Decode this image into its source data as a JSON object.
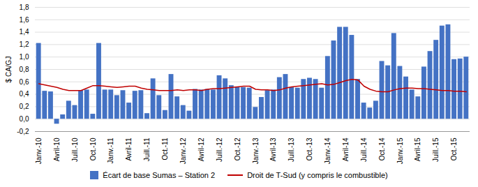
{
  "chart_data": {
    "type": "bar",
    "categories": [
      "Janv.-10",
      null,
      null,
      "Avril-10",
      null,
      null,
      "Juill.-10",
      null,
      null,
      "Oct.-10",
      null,
      null,
      "Janv.-11",
      null,
      null,
      "Avril-11",
      null,
      null,
      "Juill.-11",
      null,
      null,
      "Oct.-11",
      null,
      null,
      "Janv.-12",
      null,
      null,
      "Avril-12",
      null,
      null,
      "Juill.-12",
      null,
      null,
      "Oct.-12",
      null,
      null,
      "Janv.-13",
      null,
      null,
      "Avril-13",
      null,
      null,
      "Juill.-13",
      null,
      null,
      "Oct.-13",
      null,
      null,
      "Janv.-14",
      null,
      null,
      "Avril-14",
      null,
      null,
      "Juill.-14",
      null,
      null,
      "Oct.-14",
      null,
      null,
      "Janv.-15",
      null,
      null,
      "Avril-15",
      null,
      null,
      "Juill.-15",
      null,
      null,
      "Oct.-15",
      null,
      null
    ],
    "series": [
      {
        "name": "Écart de base Sumas – Station 2",
        "type": "bar",
        "color": "#4472C4",
        "values": [
          1.22,
          0.45,
          0.44,
          -0.08,
          0.07,
          0.29,
          0.22,
          0.46,
          0.47,
          0.08,
          1.22,
          0.47,
          0.47,
          0.38,
          0.46,
          0.26,
          0.45,
          0.46,
          0.09,
          0.65,
          0.38,
          0.14,
          0.72,
          0.36,
          0.22,
          0.13,
          0.48,
          0.47,
          0.48,
          0.47,
          0.7,
          0.65,
          0.54,
          0.51,
          0.51,
          0.5,
          0.19,
          0.35,
          0.46,
          0.47,
          0.67,
          0.72,
          0.51,
          0.5,
          0.64,
          0.66,
          0.64,
          0.5,
          1.01,
          1.26,
          1.48,
          1.48,
          1.35,
          0.64,
          0.26,
          0.18,
          0.29,
          0.93,
          0.86,
          1.38,
          0.85,
          0.68,
          0.47,
          0.36,
          0.84,
          1.09,
          1.27,
          1.5,
          1.52,
          0.96,
          0.97,
          1.0
        ]
      },
      {
        "name": "Droit de T-Sud (y compris le combustible)",
        "type": "line",
        "color": "#C00000",
        "values": [
          0.57,
          0.55,
          0.53,
          0.51,
          0.48,
          0.46,
          0.46,
          0.46,
          0.5,
          0.54,
          0.54,
          0.53,
          0.52,
          0.51,
          0.52,
          0.53,
          0.53,
          0.5,
          0.48,
          0.47,
          0.46,
          0.46,
          0.46,
          0.47,
          0.46,
          0.47,
          0.47,
          0.46,
          0.48,
          0.49,
          0.49,
          0.5,
          0.51,
          0.52,
          0.53,
          0.53,
          0.48,
          0.47,
          0.47,
          0.46,
          0.47,
          0.5,
          0.52,
          0.53,
          0.54,
          0.55,
          0.56,
          0.57,
          0.55,
          0.56,
          0.59,
          0.62,
          0.64,
          0.63,
          0.53,
          0.48,
          0.45,
          0.44,
          0.44,
          0.47,
          0.49,
          0.5,
          0.5,
          0.49,
          0.49,
          0.48,
          0.47,
          0.46,
          0.46,
          0.45,
          0.45,
          0.44
        ]
      }
    ],
    "ylabel": "$ CA/GJ",
    "ylim": [
      -0.2,
      1.8
    ],
    "yticks": [
      {
        "value": -0.2,
        "label": "-0,2"
      },
      {
        "value": 0.0,
        "label": "0,0"
      },
      {
        "value": 0.2,
        "label": "0,2"
      },
      {
        "value": 0.4,
        "label": "0,4"
      },
      {
        "value": 0.6,
        "label": "0,6"
      },
      {
        "value": 0.8,
        "label": "0,8"
      },
      {
        "value": 1.0,
        "label": "1,0"
      },
      {
        "value": 1.2,
        "label": "1,2"
      },
      {
        "value": 1.4,
        "label": "1,4"
      },
      {
        "value": 1.6,
        "label": "1,6"
      },
      {
        "value": 1.8,
        "label": "1,8"
      }
    ],
    "grid": true,
    "legend": "bottom"
  }
}
